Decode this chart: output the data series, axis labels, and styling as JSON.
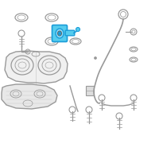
{
  "bg_color": "#ffffff",
  "lc": "#999999",
  "dc": "#666666",
  "hc": "#1a9cd8",
  "hf": "#55ccee",
  "hf2": "#88ddff",
  "lg": "#dddddd",
  "mg": "#bbbbbb",
  "tank_fill": "#f0f0f0",
  "shield_fill": "#e8e8e8"
}
